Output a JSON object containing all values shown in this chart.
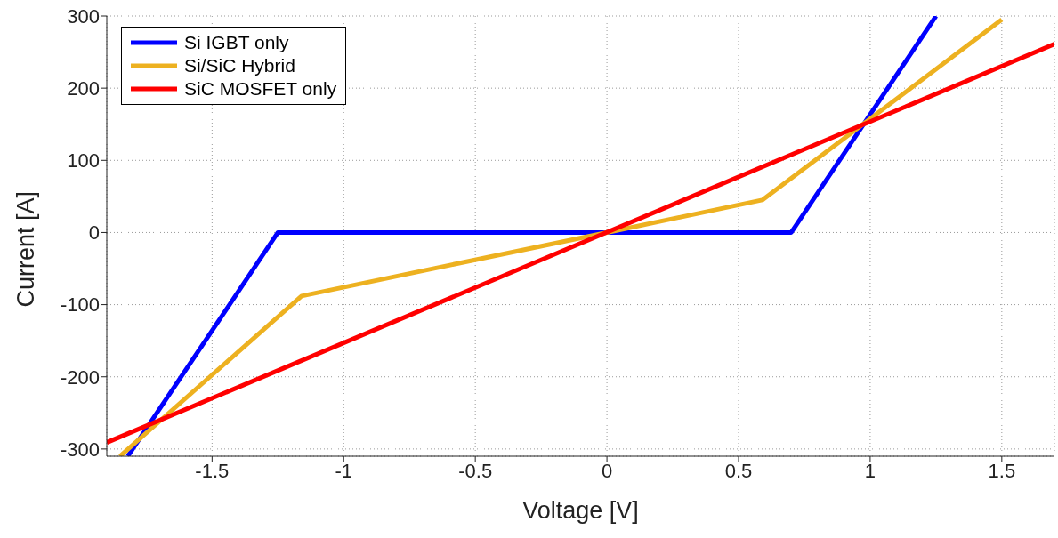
{
  "chart_data": {
    "type": "line",
    "xlabel": "Voltage [V]",
    "ylabel": "Current [A]",
    "xlim": [
      -1.9,
      1.7
    ],
    "xticks": [
      -1.5,
      -1,
      -0.5,
      0,
      0.5,
      1,
      1.5
    ],
    "ylim": [
      -310,
      300
    ],
    "yticks": [
      -300,
      -200,
      -100,
      0,
      100,
      200,
      300
    ],
    "grid": true,
    "legend": "top left",
    "line_style": "solid",
    "series": [
      {
        "name": "Si IGBT only",
        "color": "#0000ff",
        "x": [
          -1.82,
          -1.25,
          0.7,
          1.25
        ],
        "values": [
          -310,
          0,
          0,
          300
        ]
      },
      {
        "name": "Si/SiC Hybrid",
        "color": "#edb120",
        "x": [
          -1.85,
          -1.16,
          0,
          0.59,
          1.5
        ],
        "values": [
          -310,
          -88,
          0,
          45,
          295
        ]
      },
      {
        "name": "SiC MOSFET only",
        "color": "#ff0000",
        "x": [
          -1.9,
          1.7
        ],
        "values": [
          -291,
          261
        ]
      }
    ]
  }
}
